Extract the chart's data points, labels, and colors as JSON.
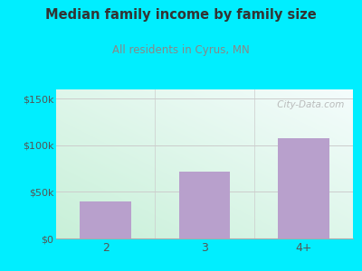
{
  "categories": [
    "2",
    "3",
    "4+"
  ],
  "values": [
    40000,
    72000,
    108000
  ],
  "bar_color": "#b8a0cc",
  "title": "Median family income by family size",
  "subtitle": "All residents in Cyrus, MN",
  "title_color": "#333333",
  "subtitle_color": "#888888",
  "background_color": "#00eeff",
  "plot_bg_topleft": "#c8f0d8",
  "plot_bg_bottomright": "#f5fff8",
  "plot_bg_topright": "#e8f8ff",
  "yticks": [
    0,
    50000,
    100000,
    150000
  ],
  "ytick_labels": [
    "$0",
    "$50k",
    "$100k",
    "$150k"
  ],
  "ylim": [
    0,
    160000
  ],
  "grid_color": "#cccccc",
  "watermark": " City-Data.com",
  "watermark_color": "#b0b0b0"
}
